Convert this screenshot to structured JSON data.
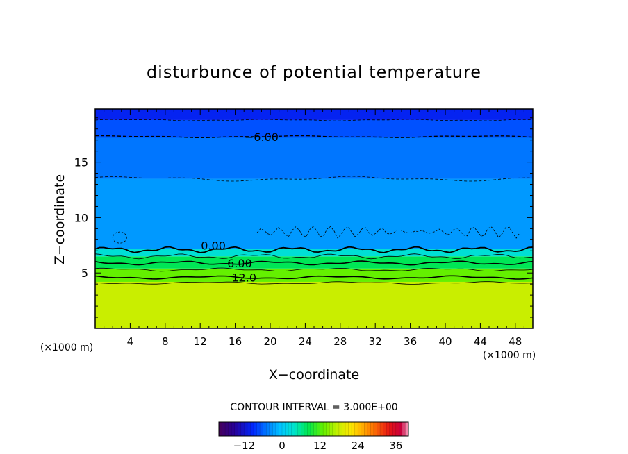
{
  "chart_data": {
    "type": "heatmap",
    "title": "disturbunce of potential temperature",
    "xlabel": "X−coordinate",
    "ylabel": "Z−coordinate",
    "x_unit_left": "(×1000 m)",
    "x_unit_right": "(×1000 m)",
    "xlim": [
      0,
      50
    ],
    "ylim": [
      0,
      19.8
    ],
    "x_ticks": [
      4,
      8,
      12,
      16,
      20,
      24,
      28,
      32,
      36,
      40,
      44,
      48
    ],
    "y_ticks": [
      5,
      10,
      15
    ],
    "contour_interval_text": "CONTOUR INTERVAL = 3.000E+00",
    "contour_labels": [
      "−6.00",
      "0.00",
      "6.00",
      "12.0"
    ],
    "contour_label_positions": [
      {
        "x": 19.0,
        "z": 17.3,
        "text": "−6.00"
      },
      {
        "x": 13.5,
        "z": 7.5,
        "text": "0.00"
      },
      {
        "x": 16.5,
        "z": 5.9,
        "text": "6.00"
      },
      {
        "x": 17.0,
        "z": 4.6,
        "text": "12.0"
      }
    ],
    "field_description_levels": [
      {
        "z0": 0.0,
        "z1": 4.2,
        "value": 18
      },
      {
        "z0": 4.2,
        "z1": 5.4,
        "value": 13
      },
      {
        "z0": 5.4,
        "z1": 6.5,
        "value": 8
      },
      {
        "z0": 6.5,
        "z1": 7.2,
        "value": 3
      },
      {
        "z0": 7.2,
        "z1": 13.5,
        "value": -3
      },
      {
        "z0": 13.5,
        "z1": 17.2,
        "value": -5
      },
      {
        "z0": 17.2,
        "z1": 18.8,
        "value": -7
      },
      {
        "z0": 18.8,
        "z1": 19.8,
        "value": -10
      }
    ],
    "colorbar": {
      "range": [
        -20,
        40
      ],
      "tick_labels": [
        "−12",
        "0",
        "12",
        "24",
        "36"
      ],
      "tick_values": [
        -12,
        0,
        12,
        24,
        36
      ]
    }
  }
}
